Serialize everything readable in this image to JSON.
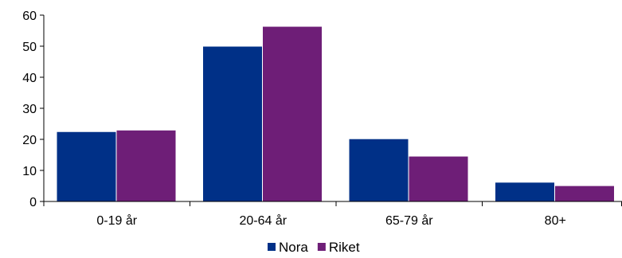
{
  "chart_data": {
    "type": "bar",
    "categories": [
      "0-19 år",
      "20-64 år",
      "65-79 år",
      "80+"
    ],
    "series": [
      {
        "name": "Nora",
        "values": [
          22.5,
          50.0,
          20.2,
          6.2
        ],
        "color": "#003087"
      },
      {
        "name": "Riket",
        "values": [
          23.0,
          56.4,
          14.6,
          5.1
        ],
        "color": "#6E1E77"
      }
    ],
    "ylim": [
      0,
      60
    ],
    "yticks": [
      0,
      10,
      20,
      30,
      40,
      50,
      60
    ],
    "xlabel": "",
    "ylabel": "",
    "grid": false,
    "legend_position": "bottom"
  }
}
